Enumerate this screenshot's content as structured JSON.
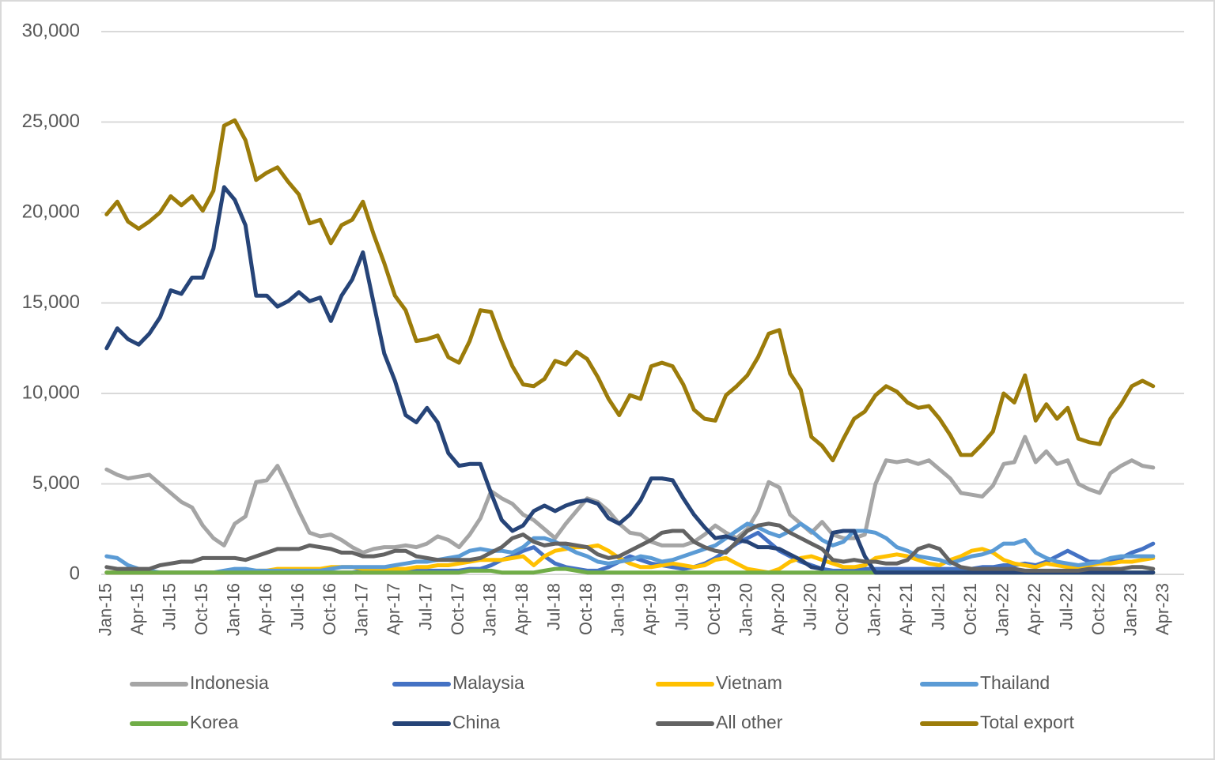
{
  "chart_data": {
    "type": "line",
    "categories": [
      "Jan-15",
      null,
      null,
      "Apr-15",
      null,
      null,
      "Jul-15",
      null,
      null,
      "Oct-15",
      null,
      null,
      "Jan-16",
      null,
      null,
      "Apr-16",
      null,
      null,
      "Jul-16",
      null,
      null,
      "Oct-16",
      null,
      null,
      "Jan-17",
      null,
      null,
      "Apr-17",
      null,
      null,
      "Jul-17",
      null,
      null,
      "Oct-17",
      null,
      null,
      "Jan-18",
      null,
      null,
      "Apr-18",
      null,
      null,
      "Jul-18",
      null,
      null,
      "Oct-18",
      null,
      null,
      "Jan-19",
      null,
      null,
      "Apr-19",
      null,
      null,
      "Jul-19",
      null,
      null,
      "Oct-19",
      null,
      null,
      "Jan-20",
      null,
      null,
      "Apr-20",
      null,
      null,
      "Jul-20",
      null,
      null,
      "Oct-20",
      null,
      null,
      "Jan-21",
      null,
      null,
      "Apr-21",
      null,
      null,
      "Jul-21",
      null,
      null,
      "Oct-21",
      null,
      null,
      "Jan-22",
      null,
      null,
      "Apr-22",
      null,
      null,
      "Jul-22",
      null,
      null,
      "Oct-22",
      null,
      null,
      "Jan-23",
      null,
      null,
      "Apr-23"
    ],
    "ylim": [
      0,
      30000
    ],
    "yticks": [
      0,
      {
        "value": 5000,
        "label": "5,000"
      },
      {
        "value": 10000,
        "label": "10,000"
      },
      {
        "value": 15000,
        "label": "15,000"
      },
      {
        "value": 20000,
        "label": "20,000"
      },
      {
        "value": 25000,
        "label": "25,000"
      },
      {
        "value": 30000,
        "label": "30,000"
      }
    ],
    "grid": true,
    "legend": "bottom",
    "series": [
      {
        "name": "Indonesia",
        "color": "#a5a5a5",
        "values": [
          5800,
          5500,
          5300,
          5400,
          5500,
          5000,
          4500,
          4000,
          3700,
          2700,
          2000,
          1600,
          2800,
          3200,
          5100,
          5200,
          6000,
          4800,
          3500,
          2300,
          2100,
          2200,
          1900,
          1500,
          1200,
          1400,
          1500,
          1500,
          1600,
          1500,
          1700,
          2100,
          1900,
          1500,
          2200,
          3100,
          4600,
          4200,
          3900,
          3300,
          3000,
          2500,
          2000,
          2800,
          3500,
          4200,
          4000,
          3500,
          2800,
          2300,
          2200,
          1800,
          1600,
          1600,
          1600,
          1800,
          2200,
          2700,
          2300,
          2000,
          2500,
          3500,
          5100,
          4800,
          3300,
          2800,
          2300,
          2900,
          2200,
          2000,
          2000,
          2200,
          5000,
          6300,
          6200,
          6300,
          6100,
          6300,
          5800,
          5300,
          4500,
          4400,
          4300,
          4900,
          6100,
          6200,
          7600,
          6200,
          6800,
          6100,
          6300,
          5000,
          4700,
          4500,
          5600,
          6000,
          6300,
          6000,
          5900,
          null
        ]
      },
      {
        "name": "Malaysia",
        "color": "#4472c4",
        "values": [
          100,
          100,
          100,
          100,
          100,
          100,
          100,
          100,
          100,
          100,
          100,
          100,
          100,
          100,
          100,
          100,
          100,
          100,
          100,
          100,
          100,
          100,
          100,
          100,
          200,
          200,
          200,
          200,
          200,
          200,
          200,
          200,
          200,
          200,
          300,
          300,
          500,
          800,
          1000,
          1300,
          1500,
          1000,
          600,
          400,
          300,
          200,
          200,
          400,
          700,
          1000,
          800,
          600,
          500,
          400,
          300,
          400,
          600,
          900,
          1300,
          1700,
          2000,
          2300,
          1800,
          1300,
          1000,
          700,
          500,
          300,
          200,
          200,
          300,
          300,
          300,
          300,
          300,
          300,
          300,
          300,
          300,
          300,
          300,
          300,
          400,
          400,
          500,
          500,
          600,
          500,
          700,
          1000,
          1300,
          1000,
          700,
          700,
          700,
          900,
          1200,
          1400,
          1700,
          null
        ]
      },
      {
        "name": "Vietnam",
        "color": "#ffc000",
        "values": [
          100,
          100,
          100,
          100,
          100,
          100,
          100,
          100,
          100,
          100,
          100,
          100,
          200,
          200,
          200,
          200,
          300,
          300,
          300,
          300,
          300,
          400,
          400,
          400,
          300,
          300,
          300,
          300,
          300,
          400,
          400,
          500,
          500,
          600,
          700,
          800,
          800,
          800,
          900,
          1000,
          500,
          1000,
          1300,
          1400,
          1500,
          1500,
          1600,
          1300,
          900,
          600,
          400,
          400,
          500,
          600,
          500,
          400,
          500,
          800,
          900,
          600,
          300,
          200,
          100,
          300,
          700,
          900,
          1000,
          800,
          600,
          400,
          400,
          500,
          900,
          1000,
          1100,
          1000,
          800,
          600,
          500,
          800,
          1000,
          1300,
          1400,
          1200,
          800,
          600,
          500,
          400,
          600,
          500,
          400,
          400,
          500,
          600,
          600,
          700,
          700,
          800,
          900,
          null
        ]
      },
      {
        "name": "Thailand",
        "color": "#5b9bd5",
        "values": [
          1000,
          900,
          500,
          300,
          200,
          100,
          100,
          100,
          100,
          100,
          100,
          200,
          300,
          300,
          200,
          200,
          200,
          200,
          200,
          200,
          200,
          300,
          400,
          400,
          400,
          400,
          400,
          500,
          600,
          700,
          700,
          800,
          900,
          1000,
          1300,
          1400,
          1300,
          1300,
          1200,
          1500,
          2000,
          2000,
          1800,
          1500,
          1200,
          1000,
          700,
          600,
          700,
          800,
          1000,
          900,
          700,
          800,
          1000,
          1200,
          1400,
          1600,
          2000,
          2400,
          2800,
          2600,
          2300,
          2100,
          2400,
          2800,
          2400,
          1900,
          1600,
          1800,
          2400,
          2400,
          2300,
          2000,
          1500,
          1300,
          1000,
          900,
          800,
          600,
          800,
          1000,
          1100,
          1300,
          1700,
          1700,
          1900,
          1200,
          900,
          700,
          600,
          500,
          600,
          700,
          900,
          1000,
          1000,
          1000,
          1000,
          null
        ]
      },
      {
        "name": "Korea",
        "color": "#70ad47",
        "values": [
          100,
          100,
          100,
          100,
          100,
          100,
          100,
          100,
          100,
          100,
          100,
          100,
          100,
          100,
          100,
          100,
          100,
          100,
          100,
          100,
          100,
          100,
          100,
          100,
          100,
          100,
          100,
          100,
          100,
          100,
          100,
          100,
          100,
          100,
          200,
          200,
          200,
          100,
          100,
          100,
          100,
          200,
          300,
          300,
          200,
          100,
          100,
          100,
          100,
          100,
          100,
          100,
          100,
          100,
          100,
          100,
          100,
          100,
          100,
          100,
          100,
          100,
          100,
          100,
          100,
          100,
          100,
          100,
          100,
          100,
          100,
          100,
          100,
          100,
          100,
          100,
          100,
          100,
          100,
          100,
          100,
          100,
          100,
          100,
          100,
          100,
          100,
          100,
          100,
          100,
          100,
          100,
          100,
          100,
          100,
          100,
          100,
          100,
          100,
          null
        ]
      },
      {
        "name": "China",
        "color": "#264478",
        "values": [
          12500,
          13600,
          13000,
          12700,
          13300,
          14200,
          15700,
          15500,
          16400,
          16400,
          18000,
          21400,
          20700,
          19300,
          15400,
          15400,
          14800,
          15100,
          15600,
          15100,
          15300,
          14000,
          15400,
          16300,
          17800,
          15000,
          12200,
          10700,
          8800,
          8400,
          9200,
          8400,
          6700,
          6000,
          6100,
          6100,
          4500,
          3000,
          2400,
          2700,
          3500,
          3800,
          3500,
          3800,
          4000,
          4100,
          3900,
          3100,
          2800,
          3300,
          4100,
          5300,
          5300,
          5200,
          4200,
          3300,
          2600,
          2000,
          2100,
          1900,
          1800,
          1500,
          1500,
          1400,
          1100,
          800,
          400,
          300,
          2300,
          2400,
          2400,
          1000,
          100,
          100,
          100,
          100,
          100,
          100,
          100,
          100,
          100,
          100,
          100,
          100,
          100,
          100,
          100,
          100,
          100,
          100,
          100,
          100,
          100,
          100,
          100,
          100,
          100,
          100,
          100,
          null
        ]
      },
      {
        "name": "All other",
        "color": "#636363",
        "values": [
          400,
          300,
          300,
          300,
          300,
          500,
          600,
          700,
          700,
          900,
          900,
          900,
          900,
          800,
          1000,
          1200,
          1400,
          1400,
          1400,
          1600,
          1500,
          1400,
          1200,
          1200,
          1000,
          1000,
          1100,
          1300,
          1300,
          1000,
          900,
          800,
          800,
          800,
          800,
          900,
          1200,
          1500,
          2000,
          2200,
          1800,
          1600,
          1700,
          1700,
          1600,
          1500,
          1100,
          900,
          1000,
          1300,
          1600,
          1900,
          2300,
          2400,
          2400,
          1800,
          1500,
          1300,
          1200,
          1800,
          2400,
          2700,
          2800,
          2700,
          2300,
          2000,
          1700,
          1400,
          800,
          700,
          800,
          700,
          700,
          600,
          600,
          800,
          1400,
          1600,
          1400,
          700,
          400,
          300,
          300,
          300,
          300,
          300,
          200,
          200,
          200,
          200,
          200,
          200,
          300,
          300,
          300,
          300,
          400,
          400,
          300,
          null
        ]
      },
      {
        "name": "Total export",
        "color": "#9c7c0a",
        "values": [
          19900,
          20600,
          19500,
          19100,
          19500,
          20000,
          20900,
          20400,
          20900,
          20100,
          21200,
          24800,
          25100,
          24000,
          21800,
          22200,
          22500,
          21700,
          21000,
          19400,
          19600,
          18300,
          19300,
          19600,
          20600,
          18800,
          17200,
          15400,
          14600,
          12900,
          13000,
          13200,
          12000,
          11700,
          12900,
          14600,
          14500,
          12900,
          11500,
          10500,
          10400,
          10800,
          11800,
          11600,
          12300,
          11900,
          10900,
          9700,
          8800,
          9900,
          9700,
          11500,
          11700,
          11500,
          10500,
          9100,
          8600,
          8500,
          9900,
          10400,
          11000,
          12000,
          13300,
          13500,
          11100,
          10200,
          7600,
          7100,
          6300,
          7500,
          8600,
          9000,
          9900,
          10400,
          10100,
          9500,
          9200,
          9300,
          8600,
          7700,
          6600,
          6600,
          7200,
          7900,
          10000,
          9500,
          11000,
          8500,
          9400,
          8600,
          9200,
          7500,
          7300,
          7200,
          8600,
          9400,
          10400,
          10700,
          10400,
          null
        ]
      }
    ]
  }
}
